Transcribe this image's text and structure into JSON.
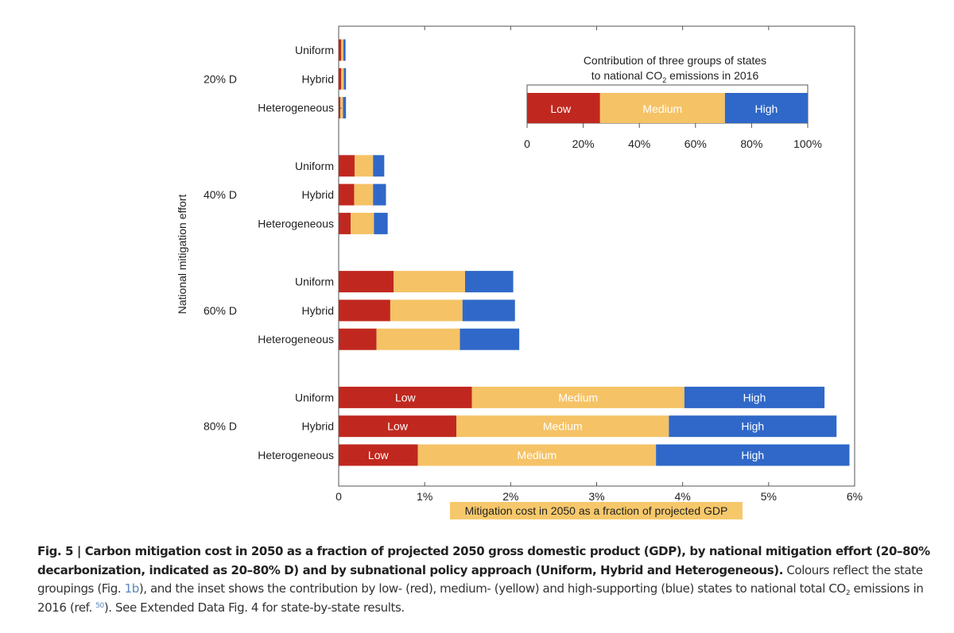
{
  "chart_data": {
    "type": "bar",
    "orientation": "horizontal",
    "stacked": true,
    "ylabel": "National mitigation effort",
    "xlabel": "Mitigation cost in 2050 as a fraction of projected GDP",
    "xlim": [
      0,
      6
    ],
    "xticks": [
      0,
      1,
      2,
      3,
      4,
      5,
      6
    ],
    "xtick_labels": [
      "0",
      "1%",
      "2%",
      "3%",
      "4%",
      "5%",
      "6%"
    ],
    "series": [
      {
        "name": "Low",
        "color": "#c0281f"
      },
      {
        "name": "Medium",
        "color": "#f5c265"
      },
      {
        "name": "High",
        "color": "#2f68c8"
      }
    ],
    "groups": [
      {
        "label": "20% D",
        "bars": [
          {
            "label": "Uniform",
            "values": [
              0.03,
              0.025,
              0.025
            ],
            "show_labels": false
          },
          {
            "label": "Hybrid",
            "values": [
              0.03,
              0.03,
              0.025
            ],
            "show_labels": false
          },
          {
            "label": "Heterogeneous",
            "values": [
              0.02,
              0.03,
              0.035
            ],
            "show_labels": false
          }
        ]
      },
      {
        "label": "40% D",
        "bars": [
          {
            "label": "Uniform",
            "values": [
              0.185,
              0.215,
              0.13
            ],
            "show_labels": false
          },
          {
            "label": "Hybrid",
            "values": [
              0.18,
              0.22,
              0.15
            ],
            "show_labels": false
          },
          {
            "label": "Heterogeneous",
            "values": [
              0.14,
              0.27,
              0.16
            ],
            "show_labels": false
          }
        ]
      },
      {
        "label": "60% D",
        "bars": [
          {
            "label": "Uniform",
            "values": [
              0.64,
              0.83,
              0.56
            ],
            "show_labels": false
          },
          {
            "label": "Hybrid",
            "values": [
              0.6,
              0.84,
              0.61
            ],
            "show_labels": false
          },
          {
            "label": "Heterogeneous",
            "values": [
              0.44,
              0.97,
              0.69
            ],
            "show_labels": false
          }
        ]
      },
      {
        "label": "80% D",
        "bars": [
          {
            "label": "Uniform",
            "values": [
              1.55,
              2.47,
              1.63
            ],
            "show_labels": true
          },
          {
            "label": "Hybrid",
            "values": [
              1.37,
              2.47,
              1.95
            ],
            "show_labels": true
          },
          {
            "label": "Heterogeneous",
            "values": [
              0.92,
              2.77,
              2.25
            ],
            "show_labels": true
          }
        ]
      }
    ],
    "inset": {
      "type": "bar",
      "title_line1": "Contribution of three groups of states",
      "title_line2_pre": "to national CO",
      "title_line2_sub": "2",
      "title_line2_post": " emissions in 2016",
      "categories": [
        "Low",
        "Medium",
        "High"
      ],
      "values": [
        26,
        44.5,
        29.5
      ],
      "xlim": [
        0,
        100
      ],
      "xtick_labels": [
        "0",
        "20%",
        "40%",
        "60%",
        "80%",
        "100%"
      ]
    },
    "axis_label_highlight": "#f7c86b"
  },
  "caption": {
    "bold": "Fig. 5 | Carbon mitigation cost in 2050 as a fraction of projected 2050 gross domestic product (GDP), by national mitigation effort (20–80% decarbonization, indicated as 20–80% D) and by subnational policy approach (Uniform, Hybrid and Heterogeneous).",
    "t1": " Colours reflect the state groupings (Fig. ",
    "ref_fig": "1b",
    "t2": "), and the inset shows the contribution by low- (red), medium- (yellow) and high-supporting (blue) states to national total CO",
    "sub": "2",
    "t3": " emissions in 2016 (ref. ",
    "ref_num": "50",
    "t4": "). See Extended Data Fig. 4 for state-by-state results."
  }
}
